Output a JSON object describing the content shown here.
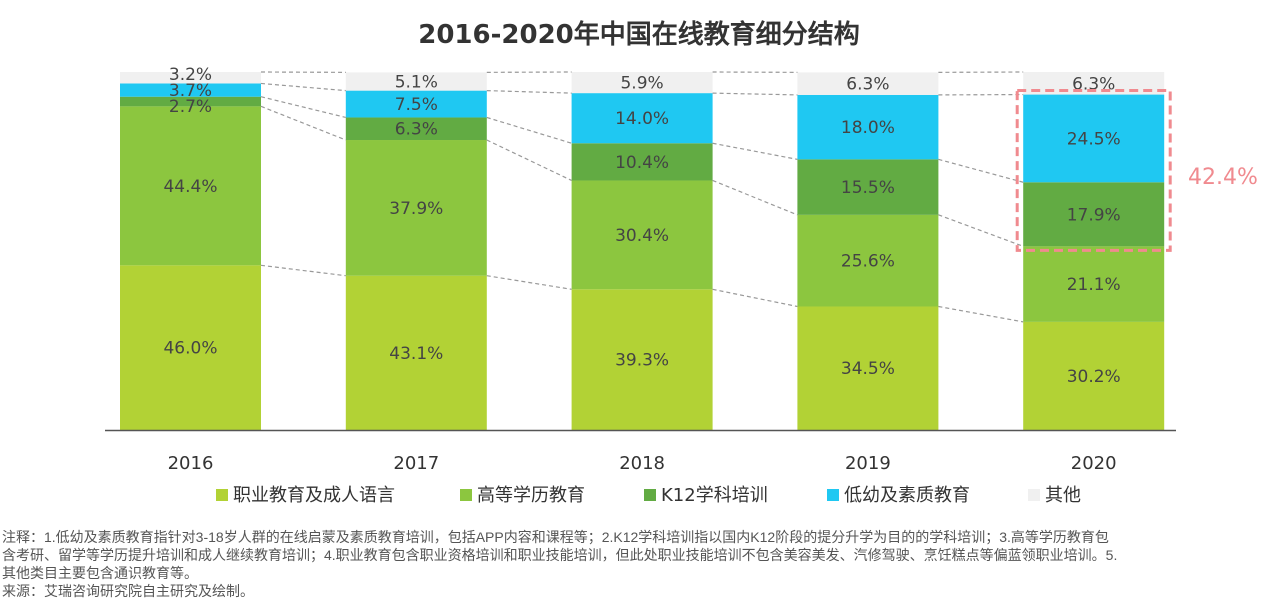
{
  "chart_data": {
    "type": "bar",
    "stacked": true,
    "title": "2016-2020年中国在线教育细分结构",
    "categories": [
      "2016",
      "2017",
      "2018",
      "2019",
      "2020"
    ],
    "series": [
      {
        "name": "职业教育及成人语言",
        "color": "#b2d235",
        "values": [
          46.0,
          43.1,
          39.3,
          34.5,
          30.2
        ]
      },
      {
        "name": "高等学历教育",
        "color": "#8cc63f",
        "values": [
          44.4,
          37.9,
          30.4,
          25.6,
          21.1
        ]
      },
      {
        "name": "K12学科培训",
        "color": "#62ab43",
        "values": [
          2.7,
          6.3,
          10.4,
          15.5,
          17.9
        ]
      },
      {
        "name": "低幼及素质教育",
        "color": "#1fc8f2",
        "values": [
          3.7,
          7.5,
          14.0,
          18.0,
          24.5
        ]
      },
      {
        "name": "其他",
        "color": "#f0f0f0",
        "values": [
          3.2,
          5.1,
          5.9,
          6.3,
          6.3
        ]
      }
    ],
    "ylim": [
      0,
      100
    ],
    "legend_position": "bottom",
    "annotation": {
      "text": "42.4%",
      "category": "2020",
      "series": [
        "K12学科培训",
        "低幼及素质教育"
      ],
      "color": "#f08a8f"
    }
  },
  "notes": [
    "注释：1.低幼及素质教育指针对3-18岁人群的在线启蒙及素质教育培训，包括APP内容和课程等；2.K12学科培训指以国内K12阶段的提分升学为目的的学科培训；3.高等学历教育包",
    "含考研、留学等学历提升培训和成人继续教育培训；4.职业教育包含职业资格培训和职业技能培训，但此处职业技能培训不包含美容美发、汽修驾驶、烹饪糕点等偏蓝领职业培训。5.",
    "其他类目主要包含通识教育等。",
    "来源：艾瑞咨询研究院自主研究及绘制。"
  ]
}
